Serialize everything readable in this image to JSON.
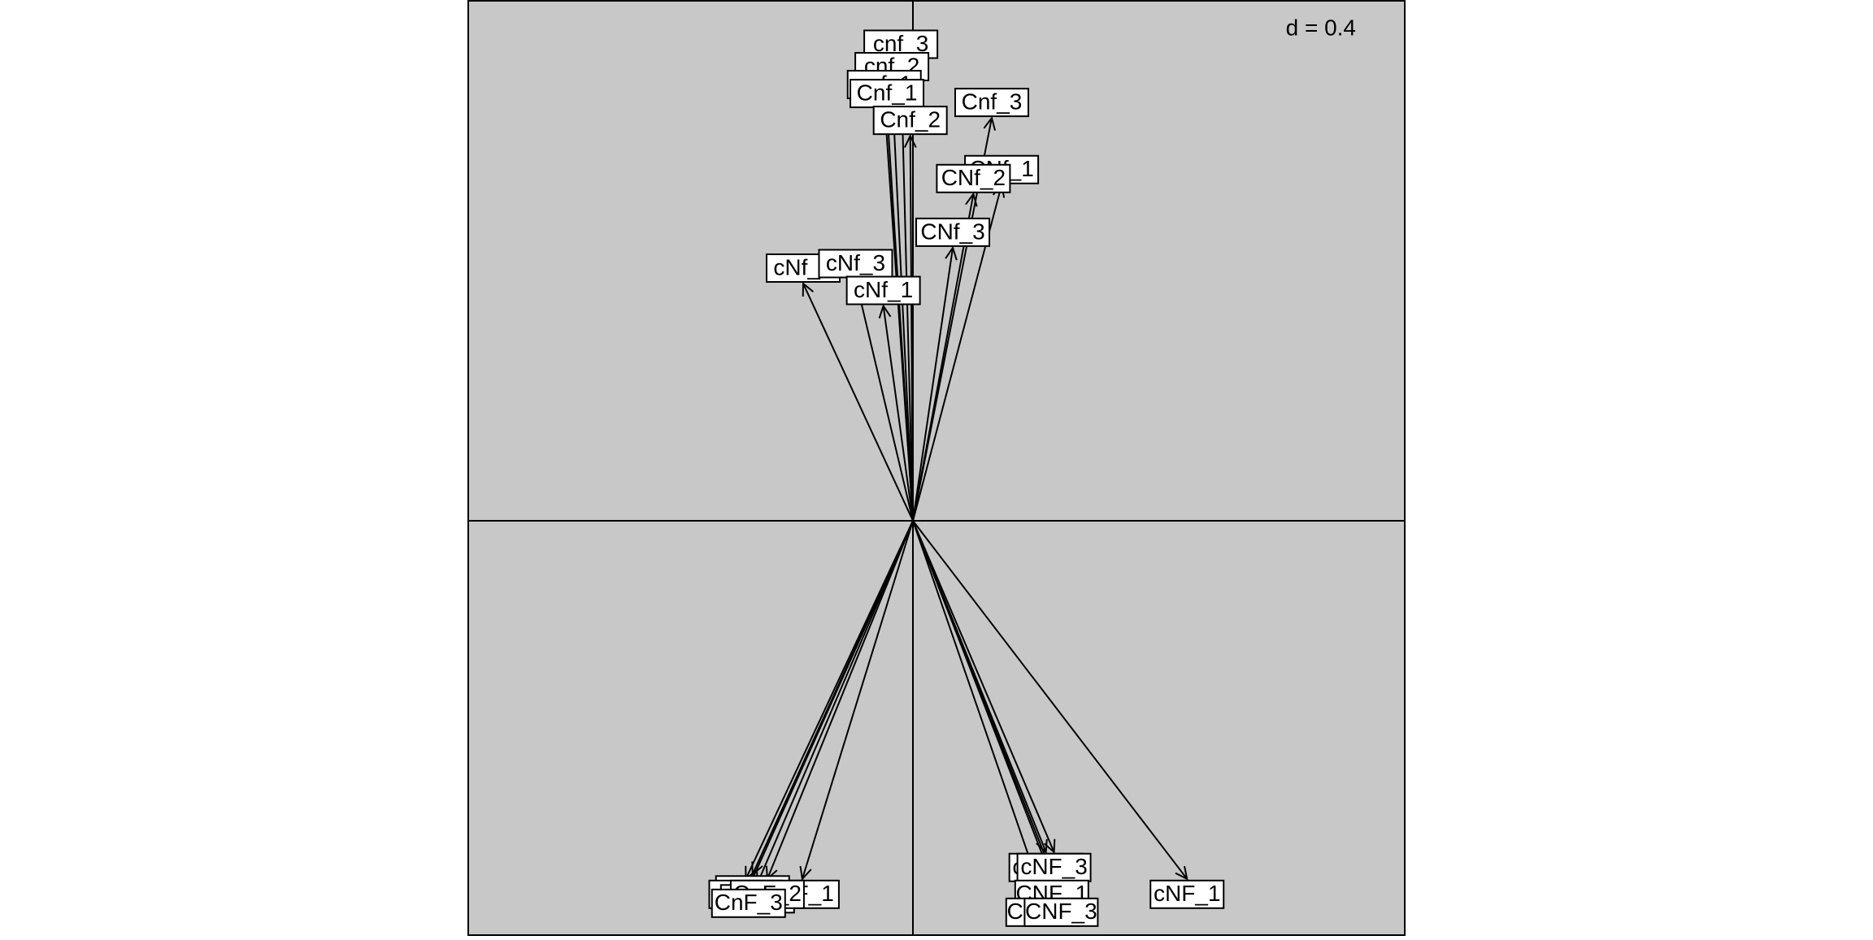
{
  "chart_data": {
    "type": "scatter",
    "subtype": "arrow-biplot",
    "title": "",
    "xlabel": "",
    "ylabel": "",
    "scale_label": "d = 0.4",
    "grid": false,
    "origin": [
      0,
      0
    ],
    "xlim": [
      -1.1,
      1.2
    ],
    "ylim": [
      -1.2,
      1.2
    ],
    "background_color": "#c8c8c8",
    "line_color": "#000000",
    "label_box_color": "#ffffff",
    "points": [
      {
        "label": "cnf_3",
        "x": -0.027,
        "y": 1.03
      },
      {
        "label": "cnf_2",
        "x": -0.047,
        "y": 0.98
      },
      {
        "label": "cnf_1",
        "x": -0.064,
        "y": 0.94
      },
      {
        "label": "Cnf_1",
        "x": -0.058,
        "y": 0.92
      },
      {
        "label": "Cnf_2",
        "x": -0.006,
        "y": 0.86
      },
      {
        "label": "Cnf_3",
        "x": 0.176,
        "y": 0.9
      },
      {
        "label": "CNf_1",
        "x": 0.198,
        "y": 0.75
      },
      {
        "label": "CNf_2",
        "x": 0.135,
        "y": 0.73
      },
      {
        "label": "CNf_3",
        "x": 0.089,
        "y": 0.61
      },
      {
        "label": "cNf_2",
        "x": -0.245,
        "y": 0.53
      },
      {
        "label": "cNf_3",
        "x": -0.128,
        "y": 0.54
      },
      {
        "label": "cNf_1",
        "x": -0.066,
        "y": 0.48
      },
      {
        "label": "cnF_1",
        "x": -0.247,
        "y": -0.8
      },
      {
        "label": "cnF_2",
        "x": -0.358,
        "y": -0.79
      },
      {
        "label": "cnF_3",
        "x": -0.373,
        "y": -0.8
      },
      {
        "label": "CnF_1",
        "x": -0.347,
        "y": -0.81
      },
      {
        "label": "CnF_2",
        "x": -0.325,
        "y": -0.8
      },
      {
        "label": "CnF_3",
        "x": -0.367,
        "y": -0.82
      },
      {
        "label": "cNF_1",
        "x": 0.612,
        "y": -0.8
      },
      {
        "label": "cNF_2",
        "x": 0.297,
        "y": -0.74
      },
      {
        "label": "cNF_3",
        "x": 0.315,
        "y": -0.74
      },
      {
        "label": "CNF_1",
        "x": 0.31,
        "y": -0.8
      },
      {
        "label": "CNF_2",
        "x": 0.29,
        "y": -0.84
      },
      {
        "label": "CNF_3",
        "x": 0.331,
        "y": -0.84
      }
    ]
  }
}
